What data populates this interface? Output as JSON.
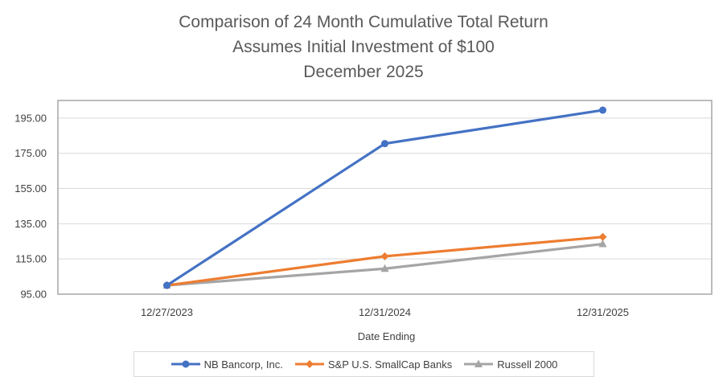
{
  "title_lines": [
    "Comparison of 24 Month Cumulative Total Return",
    "Assumes Initial Investment of $100",
    "December 2025"
  ],
  "chart_data": {
    "type": "line",
    "title": "Comparison of 24 Month Cumulative Total Return Assumes Initial Investment of $100 December 2025",
    "xlabel": "Date Ending",
    "ylabel": "",
    "categories": [
      "12/27/2023",
      "12/31/2024",
      "12/31/2025"
    ],
    "ylim": [
      95,
      205
    ],
    "yticks": [
      95,
      115,
      135,
      155,
      175,
      195
    ],
    "ytick_labels": [
      "95.00",
      "115.00",
      "135.00",
      "155.00",
      "175.00",
      "195.00"
    ],
    "grid": true,
    "legend_position": "bottom",
    "series": [
      {
        "name": "NB Bancorp, Inc.",
        "values": [
          100,
          180.5,
          199.5
        ],
        "color": "#4472c4",
        "marker": "circle"
      },
      {
        "name": "S&P U.S. SmallCap Banks",
        "values": [
          100,
          116.5,
          127.5
        ],
        "color": "#ed7d31",
        "marker": "diamond"
      },
      {
        "name": "Russell 2000",
        "values": [
          100,
          109.5,
          123.5
        ],
        "color": "#a5a5a5",
        "marker": "triangle"
      }
    ]
  }
}
